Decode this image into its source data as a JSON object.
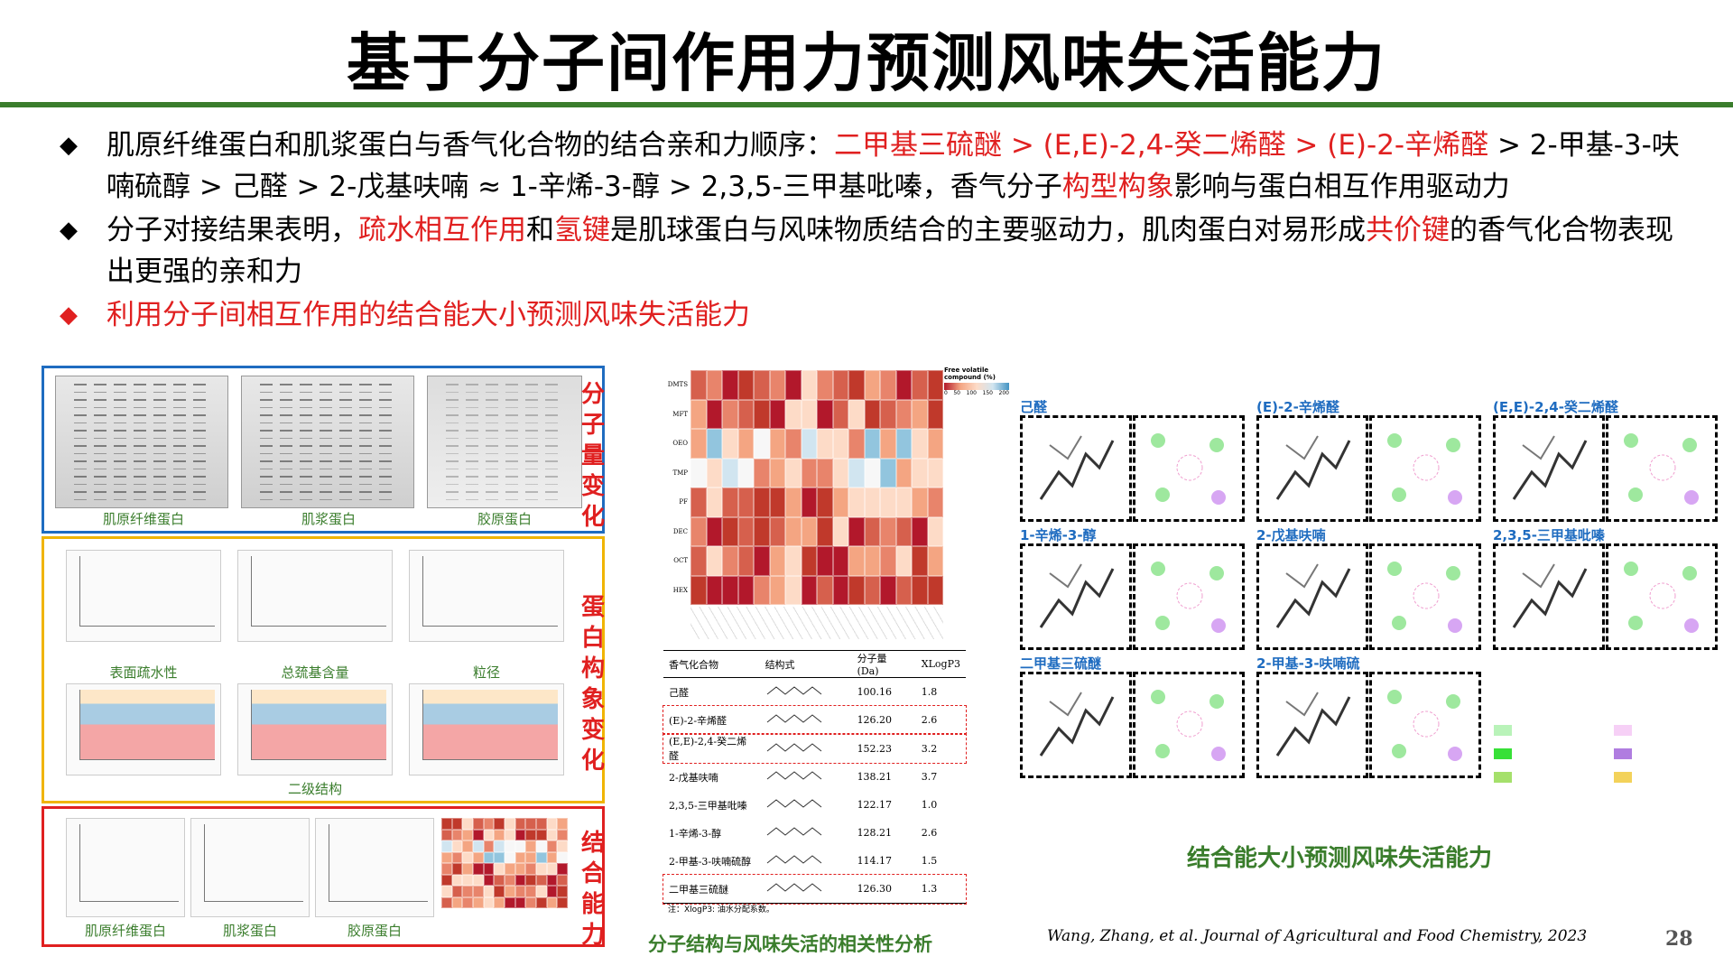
{
  "title": "基于分子间作用力预测风味失活能力",
  "bullets": [
    {
      "segments": [
        {
          "text": "肌原纤维蛋白和肌浆蛋白与香气化合物的结合亲和力顺序：",
          "red": false
        },
        {
          "text": "二甲基三硫醚 > (E,E)-2,4-癸二烯醛 > (E)-2-辛烯醛",
          "red": true
        },
        {
          "text": " > 2-甲基-3-呋喃硫醇 > 己醛 > 2-戊基呋喃 ≈ 1-辛烯-3-醇 > 2,3,5-三甲基吡嗪，香气分子",
          "red": false
        },
        {
          "text": "构型构象",
          "red": true
        },
        {
          "text": "影响与蛋白相互作用驱动力",
          "red": false
        }
      ]
    },
    {
      "segments": [
        {
          "text": "分子对接结果表明，",
          "red": false
        },
        {
          "text": "疏水相互作用",
          "red": true
        },
        {
          "text": "和",
          "red": false
        },
        {
          "text": "氢键",
          "red": true
        },
        {
          "text": "是肌球蛋白与风味物质结合的主要驱动力，肌肉蛋白对易形成",
          "red": false
        },
        {
          "text": "共价键",
          "red": true
        },
        {
          "text": "的香气化合物表现出更强的亲和力",
          "red": false
        }
      ]
    },
    {
      "segments": [
        {
          "text": "利用分子间相互作用的结合能大小预测风味失活能力",
          "red": true
        }
      ]
    }
  ],
  "panel_mw": {
    "side_label": "分子量变化",
    "captions": [
      "肌原纤维蛋白",
      "肌浆蛋白",
      "胶原蛋白"
    ]
  },
  "panel_conf": {
    "side_label": "蛋白构象变化",
    "captions": [
      "表面疏水性",
      "总巯基含量",
      "粒径"
    ],
    "bottom_caption": "二级结构"
  },
  "panel_bind": {
    "side_label": "结合能力",
    "captions": [
      "肌原纤维蛋白",
      "肌浆蛋白",
      "胶原蛋白"
    ]
  },
  "heatmap": {
    "rows": [
      "DMTS",
      "MFT",
      "OEO",
      "TMP",
      "PF",
      "DEC",
      "OCT",
      "HEX"
    ],
    "legend_title": "Free volatile compound (%)",
    "legend_ticks": [
      "0",
      "50",
      "100",
      "150",
      "200"
    ]
  },
  "table": {
    "headers": [
      "香气化合物",
      "结构式",
      "分子量 (Da)",
      "XLogP3"
    ],
    "rows": [
      {
        "name": "己醛",
        "mw": "100.16",
        "xlogp": "1.8",
        "boxed": false
      },
      {
        "name": "(E)-2-辛烯醛",
        "mw": "126.20",
        "xlogp": "2.6",
        "boxed": true
      },
      {
        "name": "(E,E)-2,4-癸二烯醛",
        "mw": "152.23",
        "xlogp": "3.2",
        "boxed": true
      },
      {
        "name": "2-戊基呋喃",
        "mw": "138.21",
        "xlogp": "3.7",
        "boxed": false
      },
      {
        "name": "2,3,5-三甲基吡嗪",
        "mw": "122.17",
        "xlogp": "1.0",
        "boxed": false
      },
      {
        "name": "1-辛烯-3-醇",
        "mw": "128.21",
        "xlogp": "2.6",
        "boxed": false
      },
      {
        "name": "2-甲基-3-呋喃硫醇",
        "mw": "114.17",
        "xlogp": "1.5",
        "boxed": false
      },
      {
        "name": "二甲基三硫醚",
        "mw": "126.30",
        "xlogp": "1.3",
        "boxed": true
      }
    ],
    "note": "注：XlogP3: 油水分配系数。",
    "caption": "分子结构与风味失活的相关性分析"
  },
  "docking": {
    "labels": [
      "己醛",
      "(E)-2-辛烯醛",
      "(E,E)-2,4-癸二烯醛",
      "1-辛烯-3-醇",
      "2-戊基呋喃",
      "2,3,5-三甲基吡嗪",
      "二甲基三硫醚",
      "2-甲基-3-呋喃硫"
    ],
    "caption": "结合能大小预测风味失活能力"
  },
  "citation": "Wang, Zhang, et al. Journal of Agricultural and Food Chemistry, 2023",
  "page_number": "28",
  "colors": {
    "accent_green": "#3a7d2c",
    "red": "#e02020",
    "blue": "#1f6cc0",
    "orange": "#f0b400"
  }
}
